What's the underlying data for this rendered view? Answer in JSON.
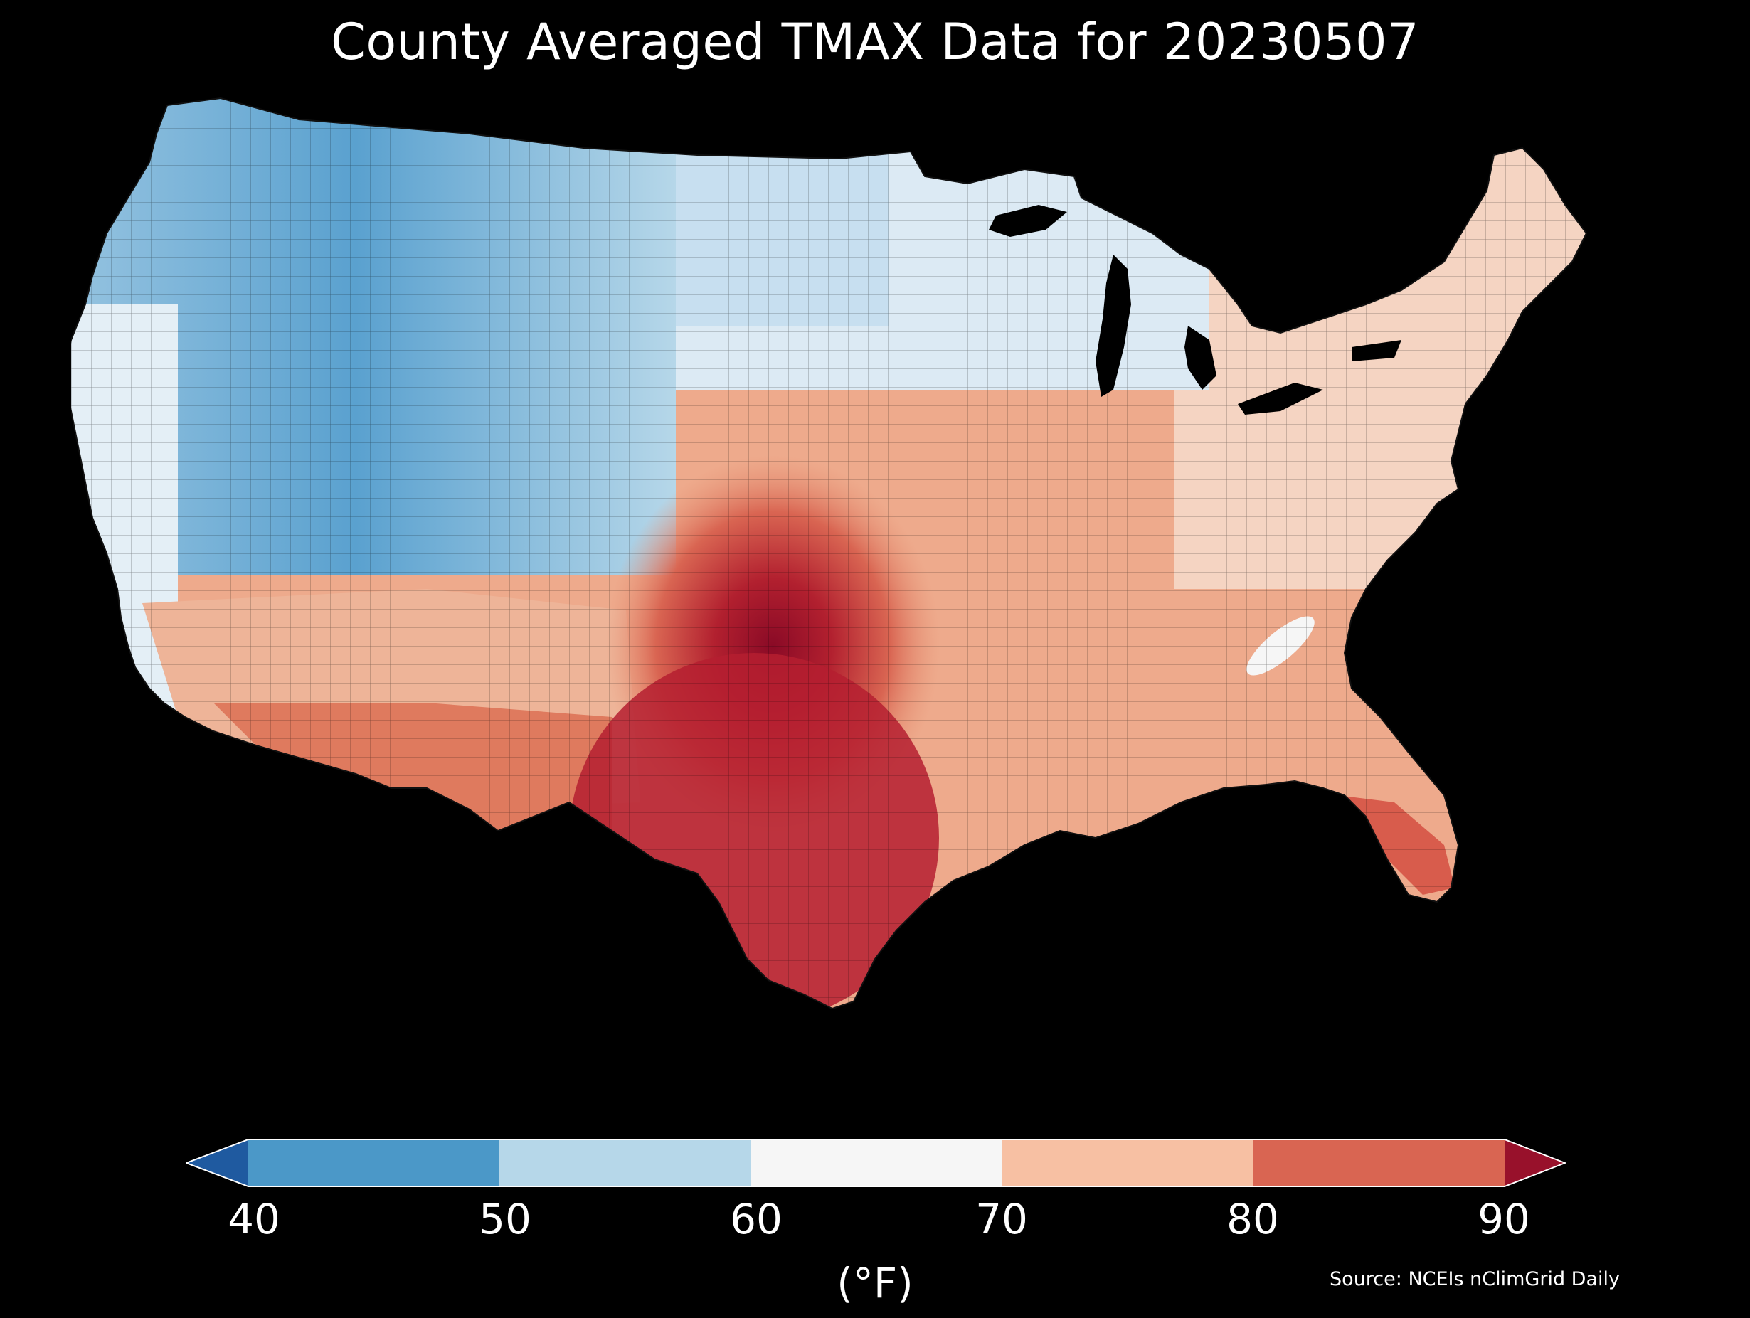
{
  "title": "County Averaged TMAX Data for 20230507",
  "colorbar": {
    "ticks": [
      "40",
      "50",
      "60",
      "70",
      "80",
      "90"
    ],
    "unit": "(°F)",
    "bins": [
      {
        "range": "<40",
        "color": "#1f5aa0"
      },
      {
        "range": "40-50",
        "color": "#4b98c8"
      },
      {
        "range": "50-60",
        "color": "#b6d7e9"
      },
      {
        "range": "60-70",
        "color": "#f6f6f6"
      },
      {
        "range": "70-80",
        "color": "#f7c0a3"
      },
      {
        "range": "80-90",
        "color": "#d96552"
      },
      {
        "range": ">90",
        "color": "#98112b"
      }
    ]
  },
  "source": "Source: NCEIs nClimGrid Daily"
}
